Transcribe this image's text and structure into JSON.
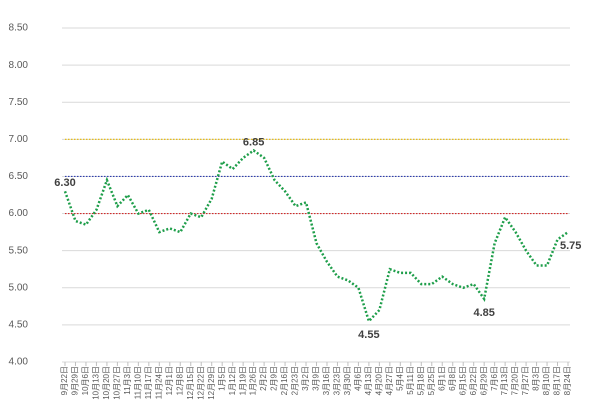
{
  "chart_data": {
    "type": "line",
    "categories": [
      "9月22日",
      "9月29日",
      "10月6日",
      "10月13日",
      "10月20日",
      "10月27日",
      "11月3日",
      "11月10日",
      "11月17日",
      "11月24日",
      "12月1日",
      "12月8日",
      "12月15日",
      "12月22日",
      "12月29日",
      "1月5日",
      "1月12日",
      "1月19日",
      "1月26日",
      "2月2日",
      "2月9日",
      "2月16日",
      "2月23日",
      "3月2日",
      "3月9日",
      "3月16日",
      "3月23日",
      "3月30日",
      "4月6日",
      "4月13日",
      "4月20日",
      "4月27日",
      "5月4日",
      "5月11日",
      "5月18日",
      "5月25日",
      "6月1日",
      "6月8日",
      "6月15日",
      "6月22日",
      "6月29日",
      "7月6日",
      "7月13日",
      "7月20日",
      "7月27日",
      "8月3日",
      "8月10日",
      "8月17日",
      "8月24日"
    ],
    "series": [
      {
        "color": "#1e9e4a",
        "values": [
          6.3,
          5.9,
          5.85,
          6.05,
          6.45,
          6.1,
          6.25,
          6.0,
          6.05,
          5.75,
          5.8,
          5.75,
          6.0,
          5.95,
          6.2,
          6.7,
          6.6,
          6.75,
          6.85,
          6.75,
          6.45,
          6.3,
          6.1,
          6.15,
          5.6,
          5.35,
          5.15,
          5.1,
          5.0,
          4.55,
          4.7,
          5.25,
          5.2,
          5.2,
          5.05,
          5.05,
          5.15,
          5.05,
          5.0,
          5.05,
          4.85,
          5.6,
          5.95,
          5.75,
          5.5,
          5.3,
          5.3,
          5.65,
          5.75
        ],
        "value_labels": [
          "6.30",
          null,
          null,
          null,
          null,
          null,
          null,
          null,
          null,
          null,
          null,
          null,
          null,
          null,
          null,
          null,
          null,
          null,
          "6.85",
          null,
          null,
          null,
          null,
          null,
          null,
          null,
          null,
          null,
          null,
          "4.55",
          null,
          null,
          null,
          null,
          null,
          null,
          null,
          null,
          null,
          null,
          "4.85",
          null,
          null,
          null,
          null,
          null,
          null,
          null,
          "5.75"
        ]
      }
    ],
    "reference_lines": [
      {
        "value": 7.0,
        "color": "#e6b800"
      },
      {
        "value": 6.5,
        "color": "#2f3fb0"
      },
      {
        "value": 6.0,
        "color": "#d42a2a"
      }
    ],
    "ylim": [
      4.0,
      8.5
    ],
    "yticks": [
      {
        "value": 4.0,
        "label": "4.00"
      },
      {
        "value": 4.5,
        "label": "4.50"
      },
      {
        "value": 5.0,
        "label": "5.00"
      },
      {
        "value": 5.5,
        "label": "5.50"
      },
      {
        "value": 6.0,
        "label": "6.00"
      },
      {
        "value": 6.5,
        "label": "6.50"
      },
      {
        "value": 7.0,
        "label": "7.00"
      },
      {
        "value": 7.5,
        "label": "7.50"
      },
      {
        "value": 8.0,
        "label": "8.00"
      },
      {
        "value": 8.5,
        "label": "8.50"
      }
    ],
    "grid": true
  }
}
